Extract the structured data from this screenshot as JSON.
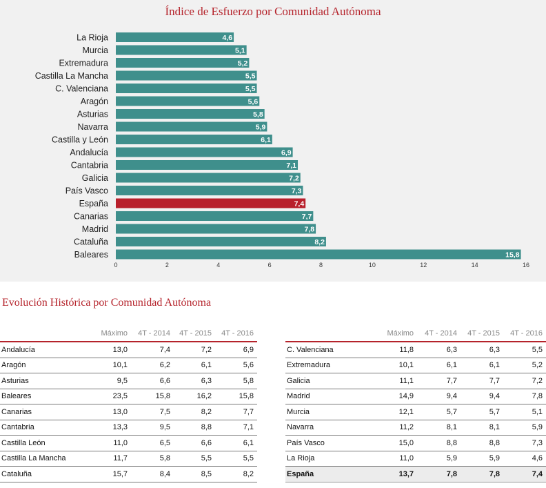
{
  "chart_data": {
    "type": "bar",
    "orientation": "horizontal",
    "title": "Índice de Esfuerzo por Comunidad Autónoma",
    "categories": [
      "La Rioja",
      "Murcia",
      "Extremadura",
      "Castilla La Mancha",
      "C. Valenciana",
      "Aragón",
      "Asturias",
      "Navarra",
      "Castilla y León",
      "Andalucía",
      "Cantabria",
      "Galicia",
      "País Vasco",
      "España",
      "Canarias",
      "Madrid",
      "Cataluña",
      "Baleares"
    ],
    "values": [
      4.6,
      5.1,
      5.2,
      5.5,
      5.5,
      5.6,
      5.8,
      5.9,
      6.1,
      6.9,
      7.1,
      7.2,
      7.3,
      7.4,
      7.7,
      7.8,
      8.2,
      15.8
    ],
    "value_labels": [
      "4,6",
      "5,1",
      "5,2",
      "5,5",
      "5,5",
      "5,6",
      "5,8",
      "5,9",
      "6,1",
      "6,9",
      "7,1",
      "7,2",
      "7,3",
      "7,4",
      "7,7",
      "7,8",
      "8,2",
      "15,8"
    ],
    "highlight": "España",
    "xlim": [
      0,
      16
    ],
    "xticks": [
      0,
      2,
      4,
      6,
      8,
      10,
      12,
      14,
      16
    ],
    "colors": {
      "bar": "#3f8f8c",
      "highlight": "#b81f2b"
    },
    "xlabel": "",
    "ylabel": ""
  },
  "history": {
    "title": "Evolución Histórica por Comunidad Autónoma",
    "headers": [
      "",
      "Máximo",
      "4T - 2014",
      "4T - 2015",
      "4T - 2016"
    ],
    "left_rows": [
      [
        "Andalucía",
        "13,0",
        "7,4",
        "7,2",
        "6,9"
      ],
      [
        "Aragón",
        "10,1",
        "6,2",
        "6,1",
        "5,6"
      ],
      [
        "Asturias",
        "9,5",
        "6,6",
        "6,3",
        "5,8"
      ],
      [
        "Baleares",
        "23,5",
        "15,8",
        "16,2",
        "15,8"
      ],
      [
        "Canarias",
        "13,0",
        "7,5",
        "8,2",
        "7,7"
      ],
      [
        "Cantabria",
        "13,3",
        "9,5",
        "8,8",
        "7,1"
      ],
      [
        "Castilla León",
        "11,0",
        "6,5",
        "6,6",
        "6,1"
      ],
      [
        "Castilla La Mancha",
        "11,7",
        "5,8",
        "5,5",
        "5,5"
      ],
      [
        "Cataluña",
        "15,7",
        "8,4",
        "8,5",
        "8,2"
      ]
    ],
    "right_rows": [
      [
        "C. Valenciana",
        "11,8",
        "6,3",
        "6,3",
        "5,5"
      ],
      [
        "Extremadura",
        "10,1",
        "6,1",
        "6,1",
        "5,2"
      ],
      [
        "Galicia",
        "11,1",
        "7,7",
        "7,7",
        "7,2"
      ],
      [
        "Madrid",
        "14,9",
        "9,4",
        "9,4",
        "7,8"
      ],
      [
        "Murcia",
        "12,1",
        "5,7",
        "5,7",
        "5,1"
      ],
      [
        "Navarra",
        "11,2",
        "8,1",
        "8,1",
        "5,9"
      ],
      [
        "País Vasco",
        "15,0",
        "8,8",
        "8,8",
        "7,3"
      ],
      [
        "La Rioja",
        "11,0",
        "5,9",
        "5,9",
        "4,6"
      ],
      [
        "España",
        "13,7",
        "7,8",
        "7,8",
        "7,4"
      ]
    ]
  }
}
